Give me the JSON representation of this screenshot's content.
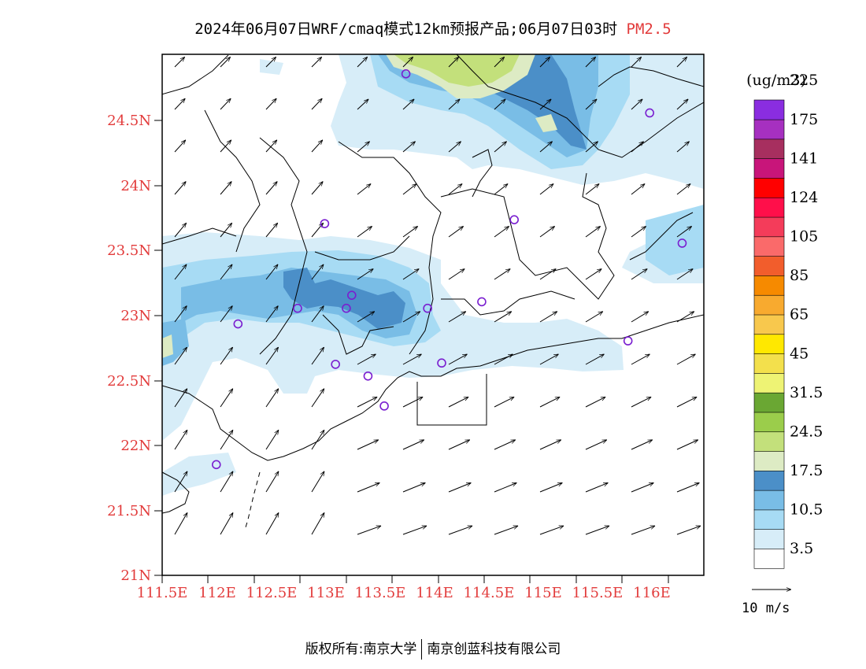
{
  "title": {
    "main": "2024年06月07日WRF/cmaq模式12km预报产品;06月07日03时",
    "species": "PM2.5"
  },
  "map": {
    "lon_range": [
      111.5,
      116.5
    ],
    "lat_range": [
      21.0,
      25.0
    ],
    "lat_labels": [
      "24.5N",
      "24N",
      "23.5N",
      "23N",
      "22.5N",
      "22N",
      "21.5N",
      "21N"
    ],
    "lon_labels": [
      "111.5E",
      "112E",
      "112.5E",
      "113E",
      "113.5E",
      "114E",
      "114.5E",
      "115E",
      "115.5E",
      "116E"
    ],
    "stations": [
      {
        "lon": 113.75,
        "lat": 24.85
      },
      {
        "lon": 116.0,
        "lat": 24.55
      },
      {
        "lon": 114.75,
        "lat": 23.73
      },
      {
        "lon": 113.0,
        "lat": 23.7
      },
      {
        "lon": 116.3,
        "lat": 23.55
      },
      {
        "lon": 113.25,
        "lat": 23.15
      },
      {
        "lon": 112.75,
        "lat": 23.05
      },
      {
        "lon": 113.2,
        "lat": 23.05
      },
      {
        "lon": 113.95,
        "lat": 23.05
      },
      {
        "lon": 114.45,
        "lat": 23.1
      },
      {
        "lon": 112.2,
        "lat": 22.93
      },
      {
        "lon": 115.8,
        "lat": 22.8
      },
      {
        "lon": 113.1,
        "lat": 22.62
      },
      {
        "lon": 113.4,
        "lat": 22.53
      },
      {
        "lon": 114.08,
        "lat": 22.63
      },
      {
        "lon": 113.55,
        "lat": 22.3
      },
      {
        "lon": 112.0,
        "lat": 21.85
      }
    ]
  },
  "legend": {
    "unit": "(ug/m3)",
    "colors": [
      "#ffffff",
      "#d7edf8",
      "#a7dbf4",
      "#79bde6",
      "#4b8fc8",
      "#ddebc4",
      "#c3e07b",
      "#9bcd4b",
      "#6aa733",
      "#eef374",
      "#f3e04c",
      "#ffe800",
      "#f8c84d",
      "#f8aa2f",
      "#f68a00",
      "#f25d2c",
      "#fa6a6a",
      "#f43c5a",
      "#ff0f4a",
      "#ff0000",
      "#c8157a",
      "#a72f5f",
      "#a630c0",
      "#8a2de0"
    ],
    "labels": [
      "3.5",
      "10.5",
      "17.5",
      "24.5",
      "31.5",
      "45",
      "65",
      "85",
      "105",
      "124",
      "141",
      "175",
      "225"
    ],
    "wind_ref": "10 m/s"
  },
  "footer": {
    "left": "版权所有:南京大学",
    "right": "南京创蓝科技有限公司"
  }
}
